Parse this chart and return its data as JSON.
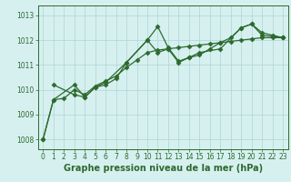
{
  "series": [
    {
      "x": [
        0,
        1,
        3,
        4,
        5,
        6,
        8,
        10,
        11,
        12,
        13,
        14,
        15,
        17,
        19,
        20,
        21,
        22,
        23
      ],
      "y": [
        1008.0,
        1009.6,
        1010.2,
        1009.7,
        1010.1,
        1010.3,
        1011.1,
        1012.0,
        1011.5,
        1011.65,
        1011.1,
        1011.3,
        1011.5,
        1011.65,
        1012.5,
        1012.65,
        1012.3,
        1012.2,
        1012.1
      ]
    },
    {
      "x": [
        1,
        3,
        4,
        5,
        6,
        7,
        8,
        10,
        11,
        12,
        13,
        14,
        15,
        16,
        17,
        18,
        19,
        20,
        21,
        22,
        23
      ],
      "y": [
        1010.2,
        1009.8,
        1009.7,
        1010.1,
        1010.2,
        1010.45,
        1011.1,
        1012.0,
        1012.55,
        1011.7,
        1011.15,
        1011.3,
        1011.4,
        1011.65,
        1011.9,
        1012.1,
        1012.5,
        1012.65,
        1012.2,
        1012.15,
        1012.1
      ]
    },
    {
      "x": [
        0,
        1,
        2,
        3,
        4,
        5,
        6,
        7,
        8,
        9,
        10,
        11,
        12,
        13,
        14,
        15,
        16,
        17,
        18,
        19,
        20,
        21,
        22,
        23
      ],
      "y": [
        1008.0,
        1009.6,
        1009.65,
        1010.0,
        1009.8,
        1010.15,
        1010.35,
        1010.55,
        1010.9,
        1011.2,
        1011.5,
        1011.6,
        1011.65,
        1011.7,
        1011.75,
        1011.8,
        1011.85,
        1011.9,
        1011.95,
        1012.0,
        1012.05,
        1012.1,
        1012.1,
        1012.1
      ]
    }
  ],
  "line_color": "#2d6a2d",
  "marker": "D",
  "markersize": 2.5,
  "linewidth": 0.9,
  "background_color": "#d6f0f0",
  "grid_color": "#b0d4d4",
  "xlabel": "Graphe pression niveau de la mer (hPa)",
  "xlabel_fontsize": 7,
  "ylim": [
    1007.6,
    1013.4
  ],
  "xlim": [
    -0.5,
    23.5
  ],
  "yticks": [
    1008,
    1009,
    1010,
    1011,
    1012,
    1013
  ],
  "xticks": [
    0,
    1,
    2,
    3,
    4,
    5,
    6,
    7,
    8,
    9,
    10,
    11,
    12,
    13,
    14,
    15,
    16,
    17,
    18,
    19,
    20,
    21,
    22,
    23
  ],
  "tick_fontsize": 5.5,
  "tick_color": "#2d6a2d"
}
